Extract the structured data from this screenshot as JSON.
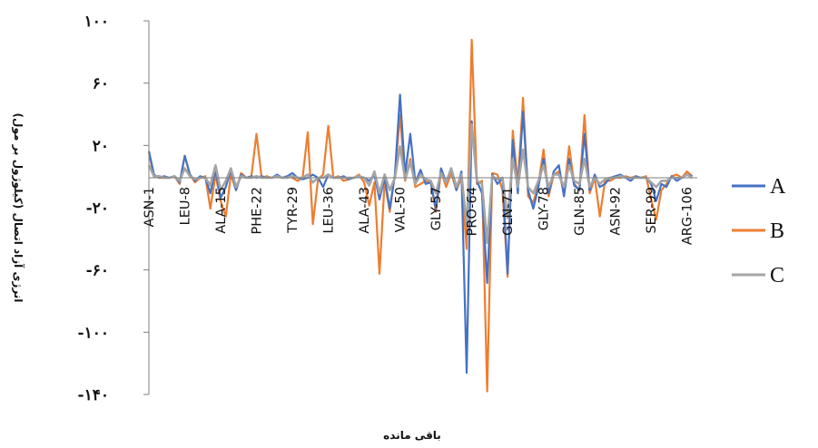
{
  "chart_data": {
    "type": "line",
    "title": "",
    "xlabel": "باقی مانده",
    "ylabel": "انرژی آزاد اتصال (کیلوژول بر مول)",
    "ylim": [
      -140,
      100
    ],
    "yticks": [
      {
        "value": 100,
        "label": "۱۰۰"
      },
      {
        "value": 60,
        "label": "۶۰"
      },
      {
        "value": 20,
        "label": "۲۰"
      },
      {
        "value": -20,
        "label": "-۲۰"
      },
      {
        "value": -60,
        "label": "-۶۰"
      },
      {
        "value": -100,
        "label": "-۱۰۰"
      },
      {
        "value": -140,
        "label": "-۱۴۰"
      }
    ],
    "categories": [
      "ASN-1",
      "LEU-8",
      "ALA-15",
      "PHE-22",
      "TYR-29",
      "LEU-36",
      "ALA-43",
      "VAL-50",
      "GLY-57",
      "PRO-64",
      "GLN-71",
      "GLY-78",
      "GLN-85",
      "ASN-92",
      "SER-99",
      "ARG-106"
    ],
    "category_positions": [
      1,
      8,
      15,
      22,
      29,
      36,
      43,
      50,
      57,
      64,
      71,
      78,
      85,
      92,
      99,
      106
    ],
    "x_range": [
      1,
      108
    ],
    "grid": false,
    "legend_position": "right",
    "series": [
      {
        "name": "A",
        "color": "#4472C4",
        "values": [
          [
            1,
            17
          ],
          [
            2,
            2
          ],
          [
            3,
            0
          ],
          [
            4,
            1
          ],
          [
            5,
            0
          ],
          [
            6,
            1
          ],
          [
            7,
            -3
          ],
          [
            8,
            14
          ],
          [
            9,
            2
          ],
          [
            10,
            -2
          ],
          [
            11,
            1
          ],
          [
            12,
            0
          ],
          [
            13,
            -10
          ],
          [
            14,
            5
          ],
          [
            15,
            -13
          ],
          [
            16,
            -6
          ],
          [
            17,
            5
          ],
          [
            18,
            -8
          ],
          [
            19,
            2
          ],
          [
            20,
            0
          ],
          [
            21,
            1
          ],
          [
            22,
            0
          ],
          [
            23,
            1
          ],
          [
            24,
            0
          ],
          [
            25,
            0
          ],
          [
            26,
            2
          ],
          [
            27,
            0
          ],
          [
            28,
            1
          ],
          [
            29,
            3
          ],
          [
            30,
            0
          ],
          [
            31,
            -1
          ],
          [
            32,
            0
          ],
          [
            33,
            2
          ],
          [
            34,
            0
          ],
          [
            35,
            -6
          ],
          [
            36,
            2
          ],
          [
            37,
            0
          ],
          [
            38,
            0
          ],
          [
            39,
            1
          ],
          [
            40,
            -1
          ],
          [
            41,
            0
          ],
          [
            42,
            1
          ],
          [
            43,
            0
          ],
          [
            44,
            -2
          ],
          [
            45,
            2
          ],
          [
            46,
            -14
          ],
          [
            47,
            0
          ],
          [
            48,
            -20
          ],
          [
            49,
            2
          ],
          [
            50,
            53
          ],
          [
            51,
            2
          ],
          [
            52,
            28
          ],
          [
            53,
            -3
          ],
          [
            54,
            5
          ],
          [
            55,
            -4
          ],
          [
            56,
            -3
          ],
          [
            57,
            -20
          ],
          [
            58,
            6
          ],
          [
            59,
            -3
          ],
          [
            60,
            6
          ],
          [
            61,
            -8
          ],
          [
            62,
            4
          ],
          [
            63,
            -126
          ],
          [
            64,
            36
          ],
          [
            65,
            -2
          ],
          [
            66,
            -10
          ],
          [
            67,
            -68
          ],
          [
            68,
            2
          ],
          [
            69,
            -4
          ],
          [
            70,
            0
          ],
          [
            71,
            -62
          ],
          [
            72,
            24
          ],
          [
            73,
            -10
          ],
          [
            74,
            42
          ],
          [
            75,
            -8
          ],
          [
            76,
            -20
          ],
          [
            77,
            -6
          ],
          [
            78,
            12
          ],
          [
            79,
            -10
          ],
          [
            80,
            4
          ],
          [
            81,
            8
          ],
          [
            82,
            -12
          ],
          [
            83,
            12
          ],
          [
            84,
            -5
          ],
          [
            85,
            -8
          ],
          [
            86,
            28
          ],
          [
            87,
            -8
          ],
          [
            88,
            2
          ],
          [
            89,
            -6
          ],
          [
            90,
            -4
          ],
          [
            91,
            0
          ],
          [
            92,
            1
          ],
          [
            93,
            2
          ],
          [
            94,
            0
          ],
          [
            95,
            -2
          ],
          [
            96,
            1
          ],
          [
            97,
            0
          ],
          [
            98,
            0
          ],
          [
            99,
            -4
          ],
          [
            100,
            -15
          ],
          [
            101,
            -4
          ],
          [
            102,
            -6
          ],
          [
            103,
            1
          ],
          [
            104,
            -2
          ],
          [
            105,
            0
          ],
          [
            106,
            2
          ],
          [
            107,
            1
          ]
        ]
      },
      {
        "name": "B",
        "color": "#ED7D31",
        "values": [
          [
            1,
            16
          ],
          [
            2,
            1
          ],
          [
            3,
            0
          ],
          [
            4,
            0
          ],
          [
            5,
            0
          ],
          [
            6,
            1
          ],
          [
            7,
            -4
          ],
          [
            8,
            14
          ],
          [
            9,
            2
          ],
          [
            10,
            -3
          ],
          [
            11,
            0
          ],
          [
            12,
            1
          ],
          [
            13,
            -20
          ],
          [
            14,
            2
          ],
          [
            15,
            -15
          ],
          [
            16,
            -25
          ],
          [
            17,
            2
          ],
          [
            18,
            -8
          ],
          [
            19,
            3
          ],
          [
            20,
            0
          ],
          [
            21,
            1
          ],
          [
            22,
            28
          ],
          [
            23,
            0
          ],
          [
            24,
            1
          ],
          [
            25,
            0
          ],
          [
            26,
            1
          ],
          [
            27,
            0
          ],
          [
            28,
            1
          ],
          [
            29,
            0
          ],
          [
            30,
            -2
          ],
          [
            31,
            0
          ],
          [
            32,
            29
          ],
          [
            33,
            -30
          ],
          [
            34,
            -1
          ],
          [
            35,
            2
          ],
          [
            36,
            33
          ],
          [
            37,
            0
          ],
          [
            38,
            1
          ],
          [
            39,
            -2
          ],
          [
            40,
            -1
          ],
          [
            41,
            0
          ],
          [
            42,
            2
          ],
          [
            43,
            -3
          ],
          [
            44,
            -18
          ],
          [
            45,
            -3
          ],
          [
            46,
            -62
          ],
          [
            47,
            -2
          ],
          [
            48,
            -22
          ],
          [
            49,
            2
          ],
          [
            50,
            40
          ],
          [
            51,
            -2
          ],
          [
            52,
            12
          ],
          [
            53,
            -6
          ],
          [
            54,
            -4
          ],
          [
            55,
            -2
          ],
          [
            56,
            -3
          ],
          [
            57,
            -22
          ],
          [
            58,
            4
          ],
          [
            59,
            -6
          ],
          [
            60,
            3
          ],
          [
            61,
            -8
          ],
          [
            62,
            0
          ],
          [
            63,
            -46
          ],
          [
            64,
            88
          ],
          [
            65,
            -4
          ],
          [
            66,
            -2
          ],
          [
            67,
            -138
          ],
          [
            68,
            3
          ],
          [
            69,
            2
          ],
          [
            70,
            -8
          ],
          [
            71,
            -64
          ],
          [
            72,
            30
          ],
          [
            73,
            -4
          ],
          [
            74,
            51
          ],
          [
            75,
            -12
          ],
          [
            76,
            -16
          ],
          [
            77,
            -4
          ],
          [
            78,
            18
          ],
          [
            79,
            -12
          ],
          [
            80,
            2
          ],
          [
            81,
            4
          ],
          [
            82,
            -10
          ],
          [
            83,
            20
          ],
          [
            84,
            -4
          ],
          [
            85,
            -8
          ],
          [
            86,
            40
          ],
          [
            87,
            -10
          ],
          [
            88,
            0
          ],
          [
            89,
            -25
          ],
          [
            90,
            -2
          ],
          [
            91,
            -2
          ],
          [
            92,
            0
          ],
          [
            93,
            0
          ],
          [
            94,
            1
          ],
          [
            95,
            0
          ],
          [
            96,
            1
          ],
          [
            97,
            0
          ],
          [
            98,
            1
          ],
          [
            99,
            -14
          ],
          [
            100,
            -27
          ],
          [
            101,
            -8
          ],
          [
            102,
            -4
          ],
          [
            103,
            1
          ],
          [
            104,
            2
          ],
          [
            105,
            0
          ],
          [
            106,
            4
          ],
          [
            107,
            1
          ]
        ]
      },
      {
        "name": "C",
        "color": "#A5A5A5",
        "values": [
          [
            1,
            8
          ],
          [
            2,
            1
          ],
          [
            3,
            1
          ],
          [
            4,
            0
          ],
          [
            5,
            0
          ],
          [
            6,
            1
          ],
          [
            7,
            -2
          ],
          [
            8,
            6
          ],
          [
            9,
            1
          ],
          [
            10,
            -1
          ],
          [
            11,
            0
          ],
          [
            12,
            0
          ],
          [
            13,
            -5
          ],
          [
            14,
            8
          ],
          [
            15,
            -8
          ],
          [
            16,
            -2
          ],
          [
            17,
            6
          ],
          [
            18,
            -6
          ],
          [
            19,
            1
          ],
          [
            20,
            0
          ],
          [
            21,
            0
          ],
          [
            22,
            1
          ],
          [
            23,
            0
          ],
          [
            24,
            0
          ],
          [
            25,
            0
          ],
          [
            26,
            1
          ],
          [
            27,
            0
          ],
          [
            28,
            0
          ],
          [
            29,
            1
          ],
          [
            30,
            0
          ],
          [
            31,
            0
          ],
          [
            32,
            2
          ],
          [
            33,
            -3
          ],
          [
            34,
            0
          ],
          [
            35,
            0
          ],
          [
            36,
            2
          ],
          [
            37,
            0
          ],
          [
            38,
            0
          ],
          [
            39,
            0
          ],
          [
            40,
            0
          ],
          [
            41,
            0
          ],
          [
            42,
            1
          ],
          [
            43,
            0
          ],
          [
            44,
            -5
          ],
          [
            45,
            4
          ],
          [
            46,
            -10
          ],
          [
            47,
            2
          ],
          [
            48,
            -8
          ],
          [
            49,
            0
          ],
          [
            50,
            20
          ],
          [
            51,
            -1
          ],
          [
            52,
            10
          ],
          [
            53,
            -4
          ],
          [
            54,
            2
          ],
          [
            55,
            -1
          ],
          [
            56,
            -2
          ],
          [
            57,
            -10
          ],
          [
            58,
            3
          ],
          [
            59,
            -3
          ],
          [
            60,
            6
          ],
          [
            61,
            -6
          ],
          [
            62,
            2
          ],
          [
            63,
            -30
          ],
          [
            64,
            34
          ],
          [
            65,
            -2
          ],
          [
            66,
            -4
          ],
          [
            67,
            -42
          ],
          [
            68,
            1
          ],
          [
            69,
            -1
          ],
          [
            70,
            0
          ],
          [
            71,
            -26
          ],
          [
            72,
            12
          ],
          [
            73,
            -6
          ],
          [
            74,
            18
          ],
          [
            75,
            -6
          ],
          [
            76,
            -10
          ],
          [
            77,
            -2
          ],
          [
            78,
            8
          ],
          [
            79,
            -6
          ],
          [
            80,
            2
          ],
          [
            81,
            2
          ],
          [
            82,
            -6
          ],
          [
            83,
            8
          ],
          [
            84,
            -2
          ],
          [
            85,
            -4
          ],
          [
            86,
            12
          ],
          [
            87,
            -6
          ],
          [
            88,
            0
          ],
          [
            89,
            -4
          ],
          [
            90,
            -1
          ],
          [
            91,
            0
          ],
          [
            92,
            0
          ],
          [
            93,
            1
          ],
          [
            94,
            0
          ],
          [
            95,
            0
          ],
          [
            96,
            0
          ],
          [
            97,
            0
          ],
          [
            98,
            0
          ],
          [
            99,
            -3
          ],
          [
            100,
            -6
          ],
          [
            101,
            -2
          ],
          [
            102,
            -2
          ],
          [
            103,
            0
          ],
          [
            104,
            0
          ],
          [
            105,
            0
          ],
          [
            106,
            2
          ],
          [
            107,
            0
          ]
        ]
      }
    ]
  }
}
